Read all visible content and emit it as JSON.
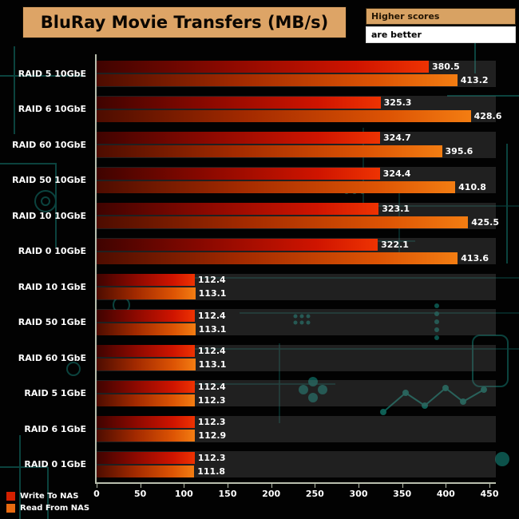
{
  "note": {
    "line1": "Higher scores",
    "line2": "are better"
  },
  "legend": [
    {
      "label": "Write To NAS",
      "color": "#d42000"
    },
    {
      "label": "Read From NAS",
      "color": "#e86a10"
    }
  ],
  "chart_data": {
    "type": "bar",
    "orientation": "horizontal",
    "title": "BluRay Movie Transfers (MB/s)",
    "categories": [
      "RAID 5 10GbE",
      "RAID 6 10GbE",
      "RAID 60 10GbE",
      "RAID 50 10GbE",
      "RAID 10 10GbE",
      "RAID 0 10GbE",
      "RAID 10 1GbE",
      "RAID 50 1GbE",
      "RAID 60 1GbE",
      "RAID 5 1GbE",
      "RAID 6 1GbE",
      "RAID 0 1GbE"
    ],
    "series": [
      {
        "name": "Write To NAS",
        "values": [
          380.5,
          325.3,
          324.7,
          324.4,
          323.1,
          322.1,
          112.4,
          112.4,
          112.4,
          112.4,
          112.3,
          112.3
        ]
      },
      {
        "name": "Read From NAS",
        "values": [
          413.2,
          428.6,
          395.6,
          410.8,
          425.5,
          413.6,
          113.1,
          113.1,
          113.1,
          112.3,
          112.9,
          111.8
        ]
      }
    ],
    "xlim": [
      0,
      450
    ],
    "xticks": [
      0,
      50,
      100,
      150,
      200,
      250,
      300,
      350,
      400,
      450
    ],
    "xlabel": "",
    "ylabel": "",
    "grid": false,
    "legend_position": "bottom-left"
  }
}
